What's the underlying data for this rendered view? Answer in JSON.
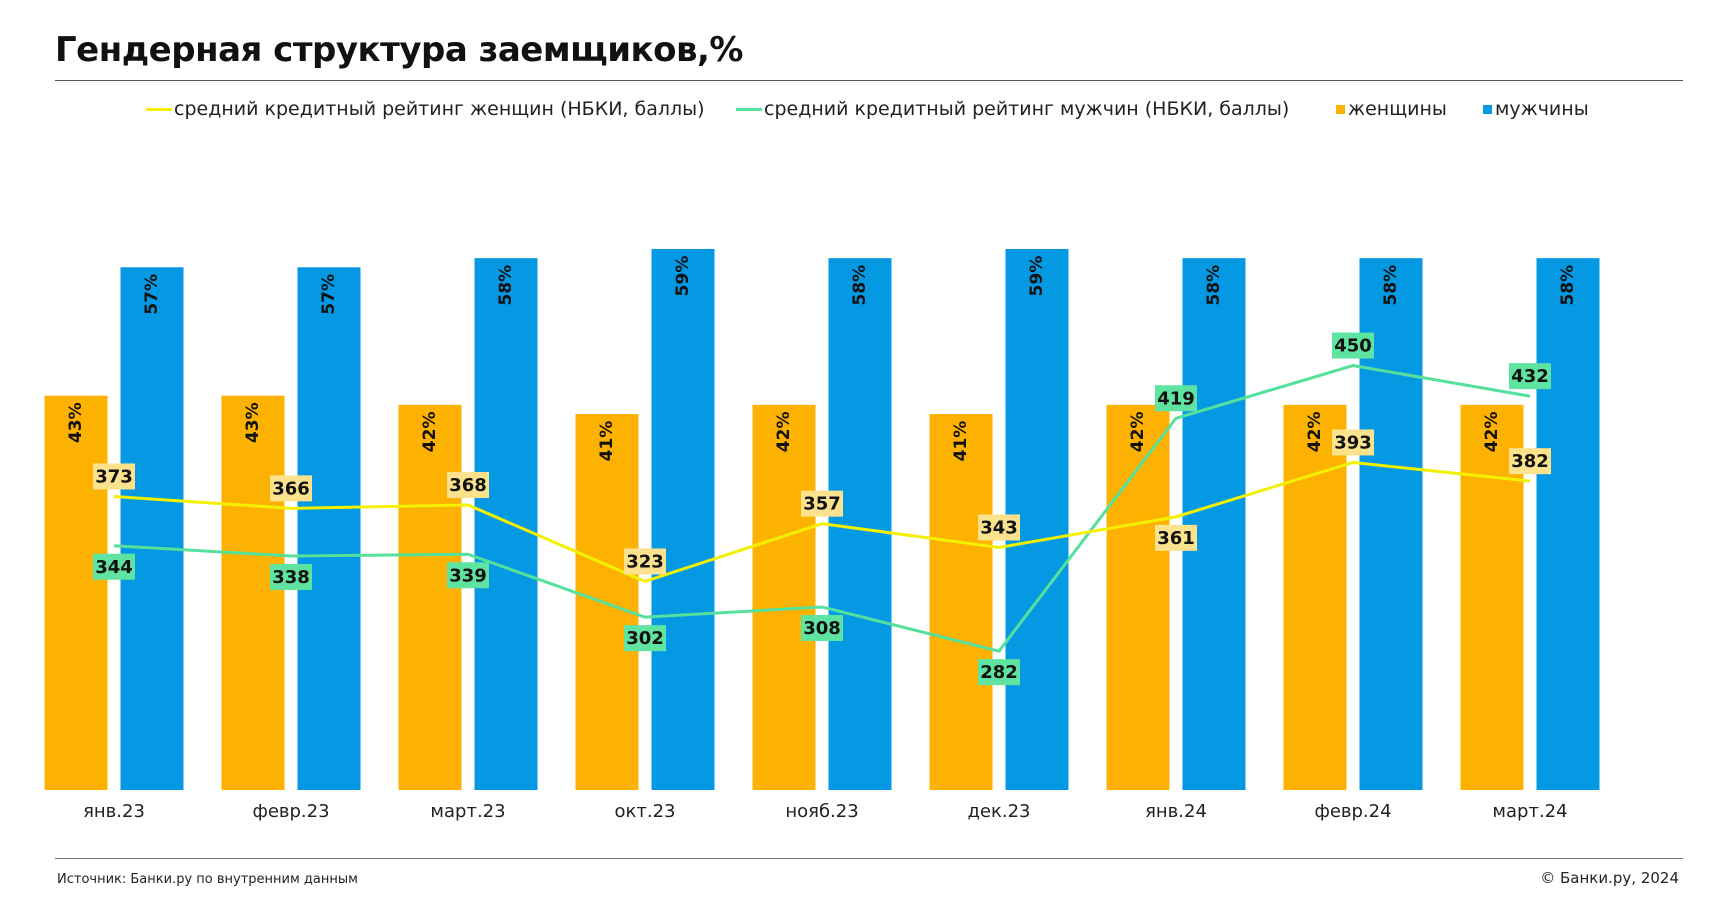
{
  "header": {
    "title": "Гендерная структура заемщиков,%"
  },
  "footer": {
    "source": "Источник: Банки.ру по внутренним данным",
    "copyright": "© Банки.ру, 2024"
  },
  "colors": {
    "women": "#FDB100",
    "men": "#0599E3",
    "women_line": "#F3F000",
    "men_line": "#55E09C",
    "women_label_bg": "#FDE28D",
    "men_label_bg": "#5FE3A0"
  },
  "chart_data": {
    "type": "bar",
    "categories": [
      "янв.23",
      "февр.23",
      "март.23",
      "окт.23",
      "нояб.23",
      "дек.23",
      "янв.24",
      "февр.24",
      "март.24"
    ],
    "series": [
      {
        "name": "женщины",
        "type": "bar",
        "values": [
          43,
          43,
          42,
          41,
          42,
          41,
          42,
          42,
          42
        ],
        "labels": [
          "43%",
          "43%",
          "42%",
          "41%",
          "42%",
          "41%",
          "42%",
          "42%",
          "42%"
        ]
      },
      {
        "name": "мужчины",
        "type": "bar",
        "values": [
          57,
          57,
          58,
          59,
          58,
          59,
          58,
          58,
          58
        ],
        "labels": [
          "57%",
          "57%",
          "58%",
          "59%",
          "58%",
          "59%",
          "58%",
          "58%",
          "58%"
        ]
      },
      {
        "name": "средний кредитный рейтинг женщин (НБКИ, баллы)",
        "type": "line",
        "values": [
          373,
          366,
          368,
          323,
          357,
          343,
          361,
          393,
          382
        ]
      },
      {
        "name": "средний кредитный рейтинг мужчин (НБКИ, баллы)",
        "type": "line",
        "values": [
          344,
          338,
          339,
          302,
          308,
          282,
          419,
          450,
          432
        ]
      }
    ],
    "title": "Гендерная структура заемщиков,%",
    "xlabel": "",
    "ylabel": "",
    "grid": false,
    "legend_position": "top"
  }
}
